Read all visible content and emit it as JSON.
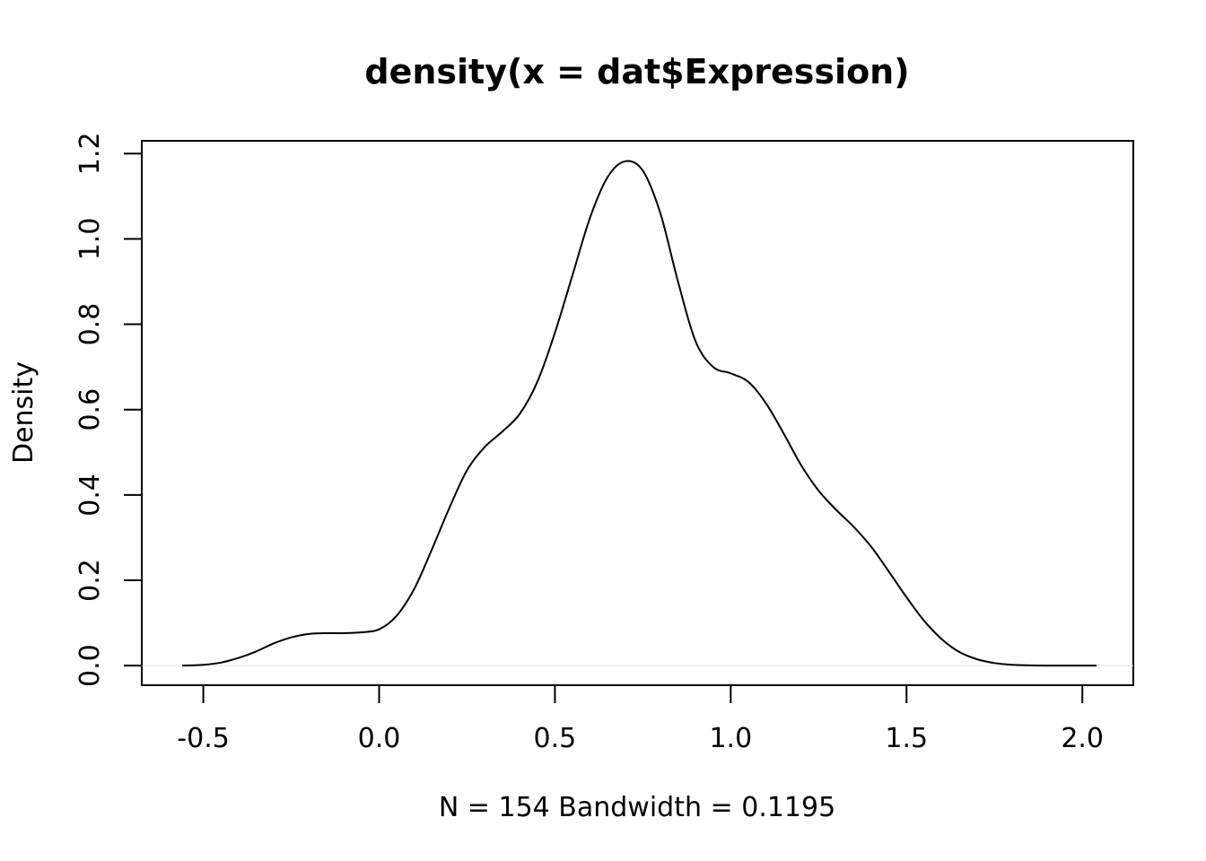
{
  "chart_data": {
    "type": "line",
    "title": "density(x = dat$Expression)",
    "xlabel": "N = 154   Bandwidth = 0.1195",
    "ylabel": "Density",
    "xlim": [
      -0.675,
      2.145
    ],
    "ylim": [
      -0.046,
      1.23
    ],
    "x_ticks": [
      -0.5,
      0.0,
      0.5,
      1.0,
      1.5,
      2.0
    ],
    "x_tick_labels": [
      "-0.5",
      "0.0",
      "0.5",
      "1.0",
      "1.5",
      "2.0"
    ],
    "y_ticks": [
      0.0,
      0.2,
      0.4,
      0.6,
      0.8,
      1.0,
      1.2
    ],
    "y_tick_labels": [
      "0.0",
      "0.2",
      "0.4",
      "0.6",
      "0.8",
      "1.0",
      "1.2"
    ],
    "zero_line": true,
    "grid": false,
    "line_color": "#000000",
    "zero_line_color": "#e6e6e6",
    "series": [
      {
        "x": [
          -0.56,
          -0.5,
          -0.45,
          -0.4,
          -0.35,
          -0.3,
          -0.25,
          -0.2,
          -0.15,
          -0.1,
          -0.05,
          0.0,
          0.05,
          0.1,
          0.15,
          0.2,
          0.25,
          0.3,
          0.35,
          0.4,
          0.45,
          0.5,
          0.55,
          0.6,
          0.65,
          0.7,
          0.75,
          0.8,
          0.85,
          0.9,
          0.95,
          1.0,
          1.05,
          1.1,
          1.15,
          1.2,
          1.25,
          1.3,
          1.35,
          1.4,
          1.45,
          1.5,
          1.55,
          1.6,
          1.65,
          1.7,
          1.75,
          1.8,
          1.85,
          1.9,
          1.95,
          2.0,
          2.04
        ],
        "y": [
          0.0,
          0.002,
          0.007,
          0.018,
          0.033,
          0.052,
          0.066,
          0.074,
          0.076,
          0.076,
          0.078,
          0.085,
          0.117,
          0.18,
          0.272,
          0.37,
          0.458,
          0.512,
          0.548,
          0.59,
          0.665,
          0.78,
          0.915,
          1.05,
          1.145,
          1.182,
          1.16,
          1.06,
          0.9,
          0.76,
          0.7,
          0.685,
          0.665,
          0.615,
          0.545,
          0.47,
          0.41,
          0.365,
          0.325,
          0.278,
          0.22,
          0.16,
          0.105,
          0.062,
          0.032,
          0.015,
          0.006,
          0.002,
          0.0005,
          0.0,
          0.0,
          0.0,
          0.0
        ]
      }
    ]
  }
}
